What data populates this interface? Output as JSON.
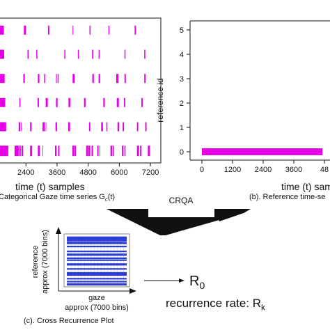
{
  "colors": {
    "magenta": "#e600e6",
    "blue": "#2a3bd6",
    "black": "#111111",
    "white": "#ffffff"
  },
  "chart_data": [
    {
      "type": "scatter",
      "panel": "a",
      "xlabel": "time (t) samples",
      "caption_main": "Categorical Gaze time series G",
      "caption_sub": "c",
      "caption_tail": "(t)",
      "x_ticks": [
        2400,
        3600,
        4800,
        6000,
        7200
      ],
      "xlim": [
        1400,
        7600
      ],
      "ylim": [
        -0.5,
        5.5
      ],
      "series": [
        {
          "category": 0,
          "segments": [
            [
              1400,
              1720
            ],
            [
              1960,
              2120
            ],
            [
              2150,
              2200
            ],
            [
              2230,
              2290
            ],
            [
              2560,
              2640
            ],
            [
              2860,
              2940
            ],
            [
              3040,
              3060
            ],
            [
              3520,
              3580
            ],
            [
              3640,
              3690
            ],
            [
              4190,
              4280
            ],
            [
              4300,
              4330
            ],
            [
              4720,
              4790
            ],
            [
              4800,
              4880
            ],
            [
              4930,
              4990
            ],
            [
              5150,
              5200
            ],
            [
              5240,
              5260
            ],
            [
              5660,
              5730
            ],
            [
              5760,
              5800
            ],
            [
              6100,
              6160
            ],
            [
              6200,
              6240
            ],
            [
              6680,
              6760
            ],
            [
              6800,
              6850
            ],
            [
              7100,
              7180
            ]
          ]
        },
        {
          "category": 1,
          "segments": [
            [
              1400,
              1640
            ],
            [
              2120,
              2180
            ],
            [
              2210,
              2230
            ],
            [
              2560,
              2620
            ],
            [
              3040,
              3130
            ],
            [
              3160,
              3180
            ],
            [
              3540,
              3600
            ],
            [
              4030,
              4100
            ],
            [
              4830,
              4880
            ],
            [
              5300,
              5370
            ],
            [
              5500,
              5540
            ],
            [
              5930,
              5990
            ],
            [
              6130,
              6180
            ],
            [
              6680,
              6730
            ],
            [
              7000,
              7050
            ]
          ]
        },
        {
          "category": 2,
          "segments": [
            [
              1400,
              1600
            ],
            [
              2150,
              2190
            ],
            [
              2850,
              2900
            ],
            [
              3160,
              3240
            ],
            [
              3560,
              3620
            ],
            [
              4040,
              4110
            ],
            [
              4640,
              4700
            ],
            [
              5380,
              5440
            ],
            [
              5900,
              5980
            ],
            [
              6180,
              6230
            ],
            [
              6850,
              6900
            ]
          ]
        },
        {
          "category": 3,
          "segments": [
            [
              1400,
              1580
            ],
            [
              2300,
              2360
            ],
            [
              2860,
              2920
            ],
            [
              3100,
              3140
            ],
            [
              3560,
              3590
            ],
            [
              3620,
              3660
            ],
            [
              4200,
              4280
            ],
            [
              4960,
              5020
            ],
            [
              5200,
              5260
            ],
            [
              5880,
              5970
            ],
            [
              6200,
              6250
            ],
            [
              6960,
              7010
            ]
          ]
        },
        {
          "category": 4,
          "segments": [
            [
              1400,
              1560
            ],
            [
              2460,
              2500
            ],
            [
              2800,
              2840
            ],
            [
              3880,
              3920
            ],
            [
              4400,
              4440
            ],
            [
              4950,
              5000
            ],
            [
              5200,
              5240
            ],
            [
              6200,
              6240
            ],
            [
              6960,
              7000
            ]
          ]
        },
        {
          "category": 5,
          "segments": [
            [
              1400,
              1550
            ],
            [
              2320,
              2400
            ],
            [
              3250,
              3300
            ],
            [
              4200,
              4230
            ],
            [
              4850,
              4890
            ],
            [
              5580,
              5620
            ],
            [
              6590,
              6640
            ]
          ]
        }
      ]
    },
    {
      "type": "line",
      "panel": "b",
      "ylabel": "reference id",
      "xlabel": "time (t) sam",
      "caption": "(b). Reference time-se",
      "x_ticks": [
        0,
        1200,
        2400,
        3600,
        "48"
      ],
      "y_ticks": [
        0,
        1,
        2,
        3,
        4,
        5
      ],
      "xlim": [
        -300,
        4750
      ],
      "ylim": [
        -0.5,
        5.5
      ],
      "series": [
        {
          "x": [
            0,
            4750
          ],
          "y": [
            0,
            0
          ]
        }
      ]
    },
    {
      "type": "heatmap",
      "panel": "c",
      "caption": "(c). Cross Recurrence Plot",
      "xlabel_1": "gaze",
      "xlabel_2": "approx (7000 bins)",
      "ylabel_1": "reference",
      "ylabel_2": "approx (7000 bins)",
      "recurrent_bands": [
        0.01,
        0.05,
        0.08,
        0.12,
        0.2,
        0.3,
        0.36,
        0.44,
        0.48,
        0.56,
        0.66,
        0.74,
        0.77,
        0.86,
        0.92,
        0.97
      ]
    }
  ],
  "flow": {
    "crqa_label": "CRQA",
    "r0_main": "R",
    "r0_sub": "0",
    "rr_main": "recurrence rate: R",
    "rr_sub": "k"
  }
}
